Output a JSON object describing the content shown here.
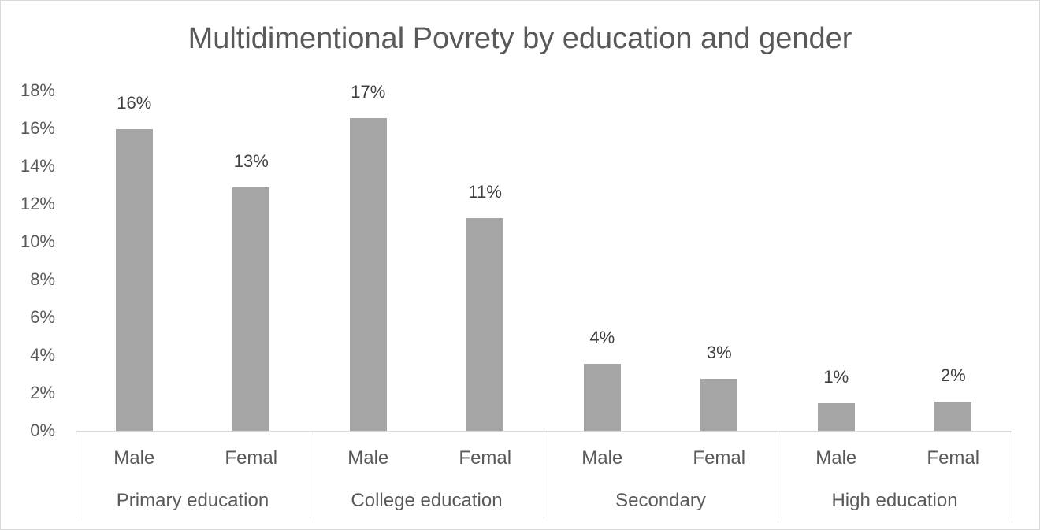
{
  "chart_data": {
    "type": "bar",
    "title": "Multidimentional Povrety by education and gender",
    "xlabel": "",
    "ylabel": "",
    "ylim": [
      0,
      18
    ],
    "yticks": [
      "0%",
      "2%",
      "4%",
      "6%",
      "8%",
      "10%",
      "12%",
      "14%",
      "16%",
      "18%"
    ],
    "grid": false,
    "legend": null,
    "groups": [
      "Primary education",
      "College education",
      "Secondary",
      "High education"
    ],
    "categories": [
      "Male",
      "Femal",
      "Male",
      "Femal",
      "Male",
      "Femal",
      "Male",
      "Femal"
    ],
    "values": [
      16.0,
      12.9,
      16.6,
      11.3,
      3.6,
      2.8,
      1.5,
      1.6
    ],
    "data_labels": [
      "16%",
      "13%",
      "17%",
      "11%",
      "4%",
      "3%",
      "1%",
      "2%"
    ],
    "bar_color": "#a5a5a5"
  },
  "ui": {
    "title": "Multidimentional Povrety by education and gender"
  }
}
